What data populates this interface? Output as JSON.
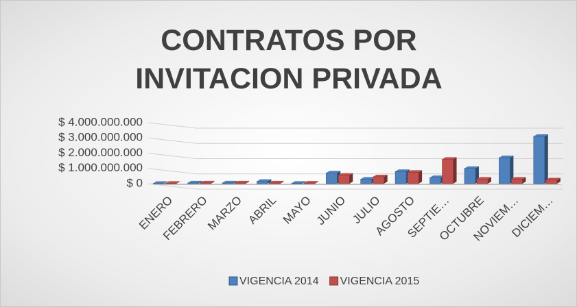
{
  "chart_data": {
    "type": "bar3d",
    "title": "CONTRATOS POR INVITACION PRIVADA",
    "categories": [
      "ENERO",
      "FEBRERO",
      "MARZO",
      "ABRIL",
      "MAYO",
      "JUNIO",
      "JULIO",
      "AGOSTO",
      "SEPTIE…",
      "OCTUBRE",
      "NOVIEM…",
      "DICIEM…"
    ],
    "series": [
      {
        "name": "VIGENCIA 2014",
        "color": "#4f81bd",
        "values": [
          20000000,
          50000000,
          50000000,
          150000000,
          30000000,
          700000000,
          300000000,
          800000000,
          400000000,
          1000000000,
          1700000000,
          3100000000
        ]
      },
      {
        "name": "VIGENCIA 2015",
        "color": "#c0504d",
        "values": [
          30000000,
          50000000,
          50000000,
          50000000,
          40000000,
          550000000,
          450000000,
          750000000,
          1600000000,
          300000000,
          300000000,
          250000000
        ]
      }
    ],
    "ylim": [
      0,
      4000000000
    ],
    "yticks": [
      {
        "value": 0,
        "label": "$ 0"
      },
      {
        "value": 1000000000,
        "label": "$ 1.000.000.000"
      },
      {
        "value": 2000000000,
        "label": "$ 2.000.000.000"
      },
      {
        "value": 3000000000,
        "label": "$ 3.000.000.000"
      },
      {
        "value": 4000000000,
        "label": "$ 4.000.000.000"
      }
    ],
    "grid": true,
    "legend": "bottom"
  }
}
